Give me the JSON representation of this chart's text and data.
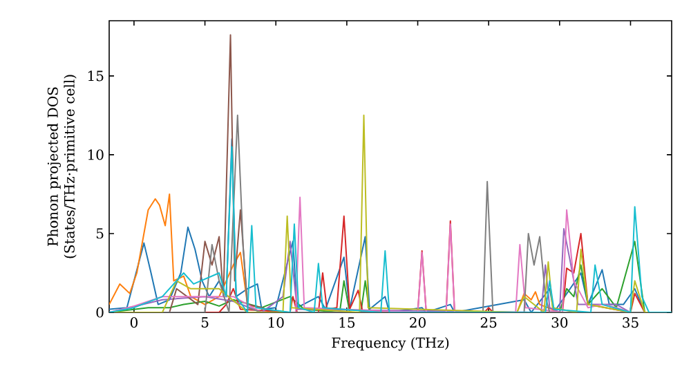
{
  "chart_data": {
    "type": "line",
    "xlabel": "Frequency (THz)",
    "ylabel": "Phonon projected DOS (States/THz·primitive cell)",
    "xlim": [
      -1.75,
      37.9
    ],
    "ylim": [
      0,
      18.5
    ],
    "xticks": [
      0,
      5,
      10,
      15,
      20,
      25,
      30,
      35
    ],
    "yticks": [
      0,
      5,
      10,
      15
    ],
    "grid": false,
    "series": [
      {
        "color": "#1f77b4",
        "x": [
          -1.75,
          -0.5,
          0,
          0.7,
          1.2,
          1.7,
          2.5,
          3.3,
          3.8,
          4.3,
          4.8,
          5.3,
          6,
          6.5,
          6.9,
          7.2,
          8,
          8.7,
          9,
          10,
          11.2,
          11.5,
          13,
          13.5,
          14.8,
          15.2,
          16.3,
          16.6,
          17.7,
          18,
          20.3,
          20.6,
          22.3,
          22.6,
          27.5,
          28,
          29.3,
          29.6,
          31.5,
          32,
          33,
          33.5,
          34.5,
          35.3,
          36,
          37.9
        ],
        "values": [
          0.2,
          0.3,
          2,
          4.4,
          2.5,
          0.5,
          0.8,
          2.5,
          5.4,
          4,
          2,
          1,
          2,
          1,
          11,
          1,
          1.5,
          1.8,
          0.2,
          0.3,
          4.5,
          0.3,
          1,
          0.2,
          3.5,
          0.2,
          4.8,
          0.2,
          1,
          0,
          0.3,
          0,
          0.5,
          0,
          0.8,
          0,
          1.5,
          0,
          2.5,
          0.5,
          2.7,
          0.5,
          0.5,
          1.5,
          0,
          0
        ]
      },
      {
        "color": "#ff7f0e",
        "x": [
          -1.75,
          -1,
          -0.3,
          0.2,
          1,
          1.5,
          1.8,
          2.2,
          2.5,
          2.8,
          3.5,
          4,
          5,
          6,
          7,
          7.5,
          8,
          10,
          27,
          27.5,
          28,
          28.3,
          28.6,
          30,
          37.9
        ],
        "values": [
          0.5,
          1.8,
          1.2,
          2.5,
          6.5,
          7.2,
          6.8,
          5.5,
          7.5,
          2,
          2.3,
          1,
          0.5,
          1,
          3,
          3.8,
          0.5,
          0,
          0,
          1.2,
          0.8,
          1.3,
          0.5,
          0,
          0
        ]
      },
      {
        "color": "#2ca02c",
        "x": [
          -1.75,
          1,
          2.5,
          3.5,
          5,
          6,
          7,
          9,
          11,
          12,
          14.5,
          14.8,
          15.2,
          16,
          16.3,
          16.6,
          30,
          30.5,
          31,
          31.5,
          32,
          33,
          34,
          35.3,
          36,
          37.9
        ],
        "values": [
          0,
          0.3,
          0.3,
          0.5,
          0.7,
          0.4,
          0.8,
          0.3,
          1,
          0.2,
          0,
          2,
          0,
          0,
          2,
          0,
          0,
          1.5,
          1,
          3,
          0.5,
          1.5,
          0.3,
          4.5,
          0,
          0
        ]
      },
      {
        "color": "#d62728",
        "x": [
          -1.75,
          6,
          6.5,
          7,
          7.5,
          11,
          11.2,
          11.5,
          13,
          13.3,
          13.6,
          14.3,
          14.8,
          15.2,
          15.8,
          16.1,
          20,
          20.3,
          20.6,
          22,
          22.3,
          22.6,
          24.7,
          25,
          25.3,
          30.2,
          30.5,
          31,
          31.5,
          32,
          35,
          35.3,
          36,
          37.9
        ],
        "values": [
          0,
          0,
          0.5,
          1.5,
          0.2,
          0,
          1,
          0,
          0,
          2.5,
          0.2,
          0.3,
          6.1,
          0.2,
          1.4,
          0.1,
          0,
          3.9,
          0,
          0,
          5.8,
          0,
          0,
          0.3,
          0,
          0,
          2.8,
          2.5,
          5,
          0.5,
          0,
          1.2,
          0,
          0
        ]
      },
      {
        "color": "#9467bd",
        "x": [
          -1.75,
          2,
          5,
          7,
          9,
          10.5,
          11,
          11.5,
          28.7,
          29,
          29.3,
          30,
          30.3,
          30.8,
          31.3,
          34,
          35,
          37.9
        ],
        "values": [
          0,
          0.8,
          1,
          0.7,
          0,
          1,
          4.5,
          0.2,
          0,
          3,
          0.3,
          0,
          5.3,
          3,
          0.5,
          0.5,
          0,
          0
        ]
      },
      {
        "color": "#8c564b",
        "x": [
          -1.75,
          2.5,
          3,
          4.5,
          5,
          5.5,
          6,
          6.3,
          6.8,
          7.1,
          7.5,
          8,
          9,
          10,
          37.9
        ],
        "values": [
          0,
          0,
          1.5,
          0.5,
          4.5,
          3,
          4.8,
          1,
          17.6,
          2,
          6.5,
          0.5,
          0.3,
          0,
          0
        ]
      },
      {
        "color": "#e377c2",
        "x": [
          -1.75,
          0,
          2,
          4,
          7,
          9,
          11.4,
          11.7,
          12,
          20,
          20.3,
          20.6,
          22,
          22.3,
          22.6,
          26.9,
          27.2,
          27.6,
          30.2,
          30.5,
          31,
          32,
          33,
          34,
          35,
          37.9
        ],
        "values": [
          0,
          0.4,
          1,
          1,
          1,
          0,
          0,
          7.3,
          0.3,
          0,
          3.8,
          0,
          0,
          5.6,
          0,
          0,
          4.3,
          0.3,
          0,
          6.5,
          2,
          0.3,
          0.5,
          0.3,
          0,
          0
        ]
      },
      {
        "color": "#7f7f7f",
        "x": [
          -1.75,
          5,
          5.5,
          6,
          6.7,
          7.3,
          7.7,
          8,
          9,
          24.6,
          24.9,
          25.3,
          27.5,
          27.8,
          28.2,
          28.6,
          29,
          29.3,
          37.9
        ],
        "values": [
          0,
          0,
          4.3,
          2,
          0,
          12.5,
          4,
          0.3,
          0,
          0,
          8.3,
          0,
          0,
          5,
          3,
          4.8,
          1,
          0,
          0
        ]
      },
      {
        "color": "#bcbd22",
        "x": [
          -1.75,
          2,
          3,
          4,
          6,
          8,
          10.5,
          10.8,
          11.1,
          15.9,
          16.2,
          16.5,
          27,
          27.5,
          28.9,
          29.2,
          29.5,
          31.2,
          31.5,
          32,
          35,
          35.3,
          36,
          37.9
        ],
        "values": [
          0,
          0,
          2,
          1.5,
          1.5,
          0,
          0,
          6.1,
          0.3,
          0,
          12.5,
          0.3,
          0,
          1,
          0,
          3.2,
          0.3,
          0,
          4,
          0.5,
          0,
          2,
          0,
          0
        ]
      },
      {
        "color": "#17becf",
        "x": [
          -1.75,
          0,
          2,
          3.5,
          4.2,
          6,
          6.5,
          6.9,
          7.2,
          8,
          8.3,
          8.6,
          11,
          11.3,
          11.6,
          12.7,
          13,
          13.3,
          17.4,
          17.7,
          18,
          29,
          29.3,
          29.6,
          32.2,
          32.5,
          33,
          35,
          35.3,
          35.8,
          36.3,
          37.9
        ],
        "values": [
          0,
          0.3,
          1,
          2.5,
          1.8,
          2.5,
          1,
          10.5,
          1,
          0,
          5.5,
          0.3,
          0,
          5.6,
          0.3,
          0,
          3.1,
          0.3,
          0,
          3.9,
          0,
          0,
          2,
          0.2,
          0,
          3,
          0.5,
          0,
          6.7,
          1,
          0,
          0
        ]
      }
    ]
  }
}
